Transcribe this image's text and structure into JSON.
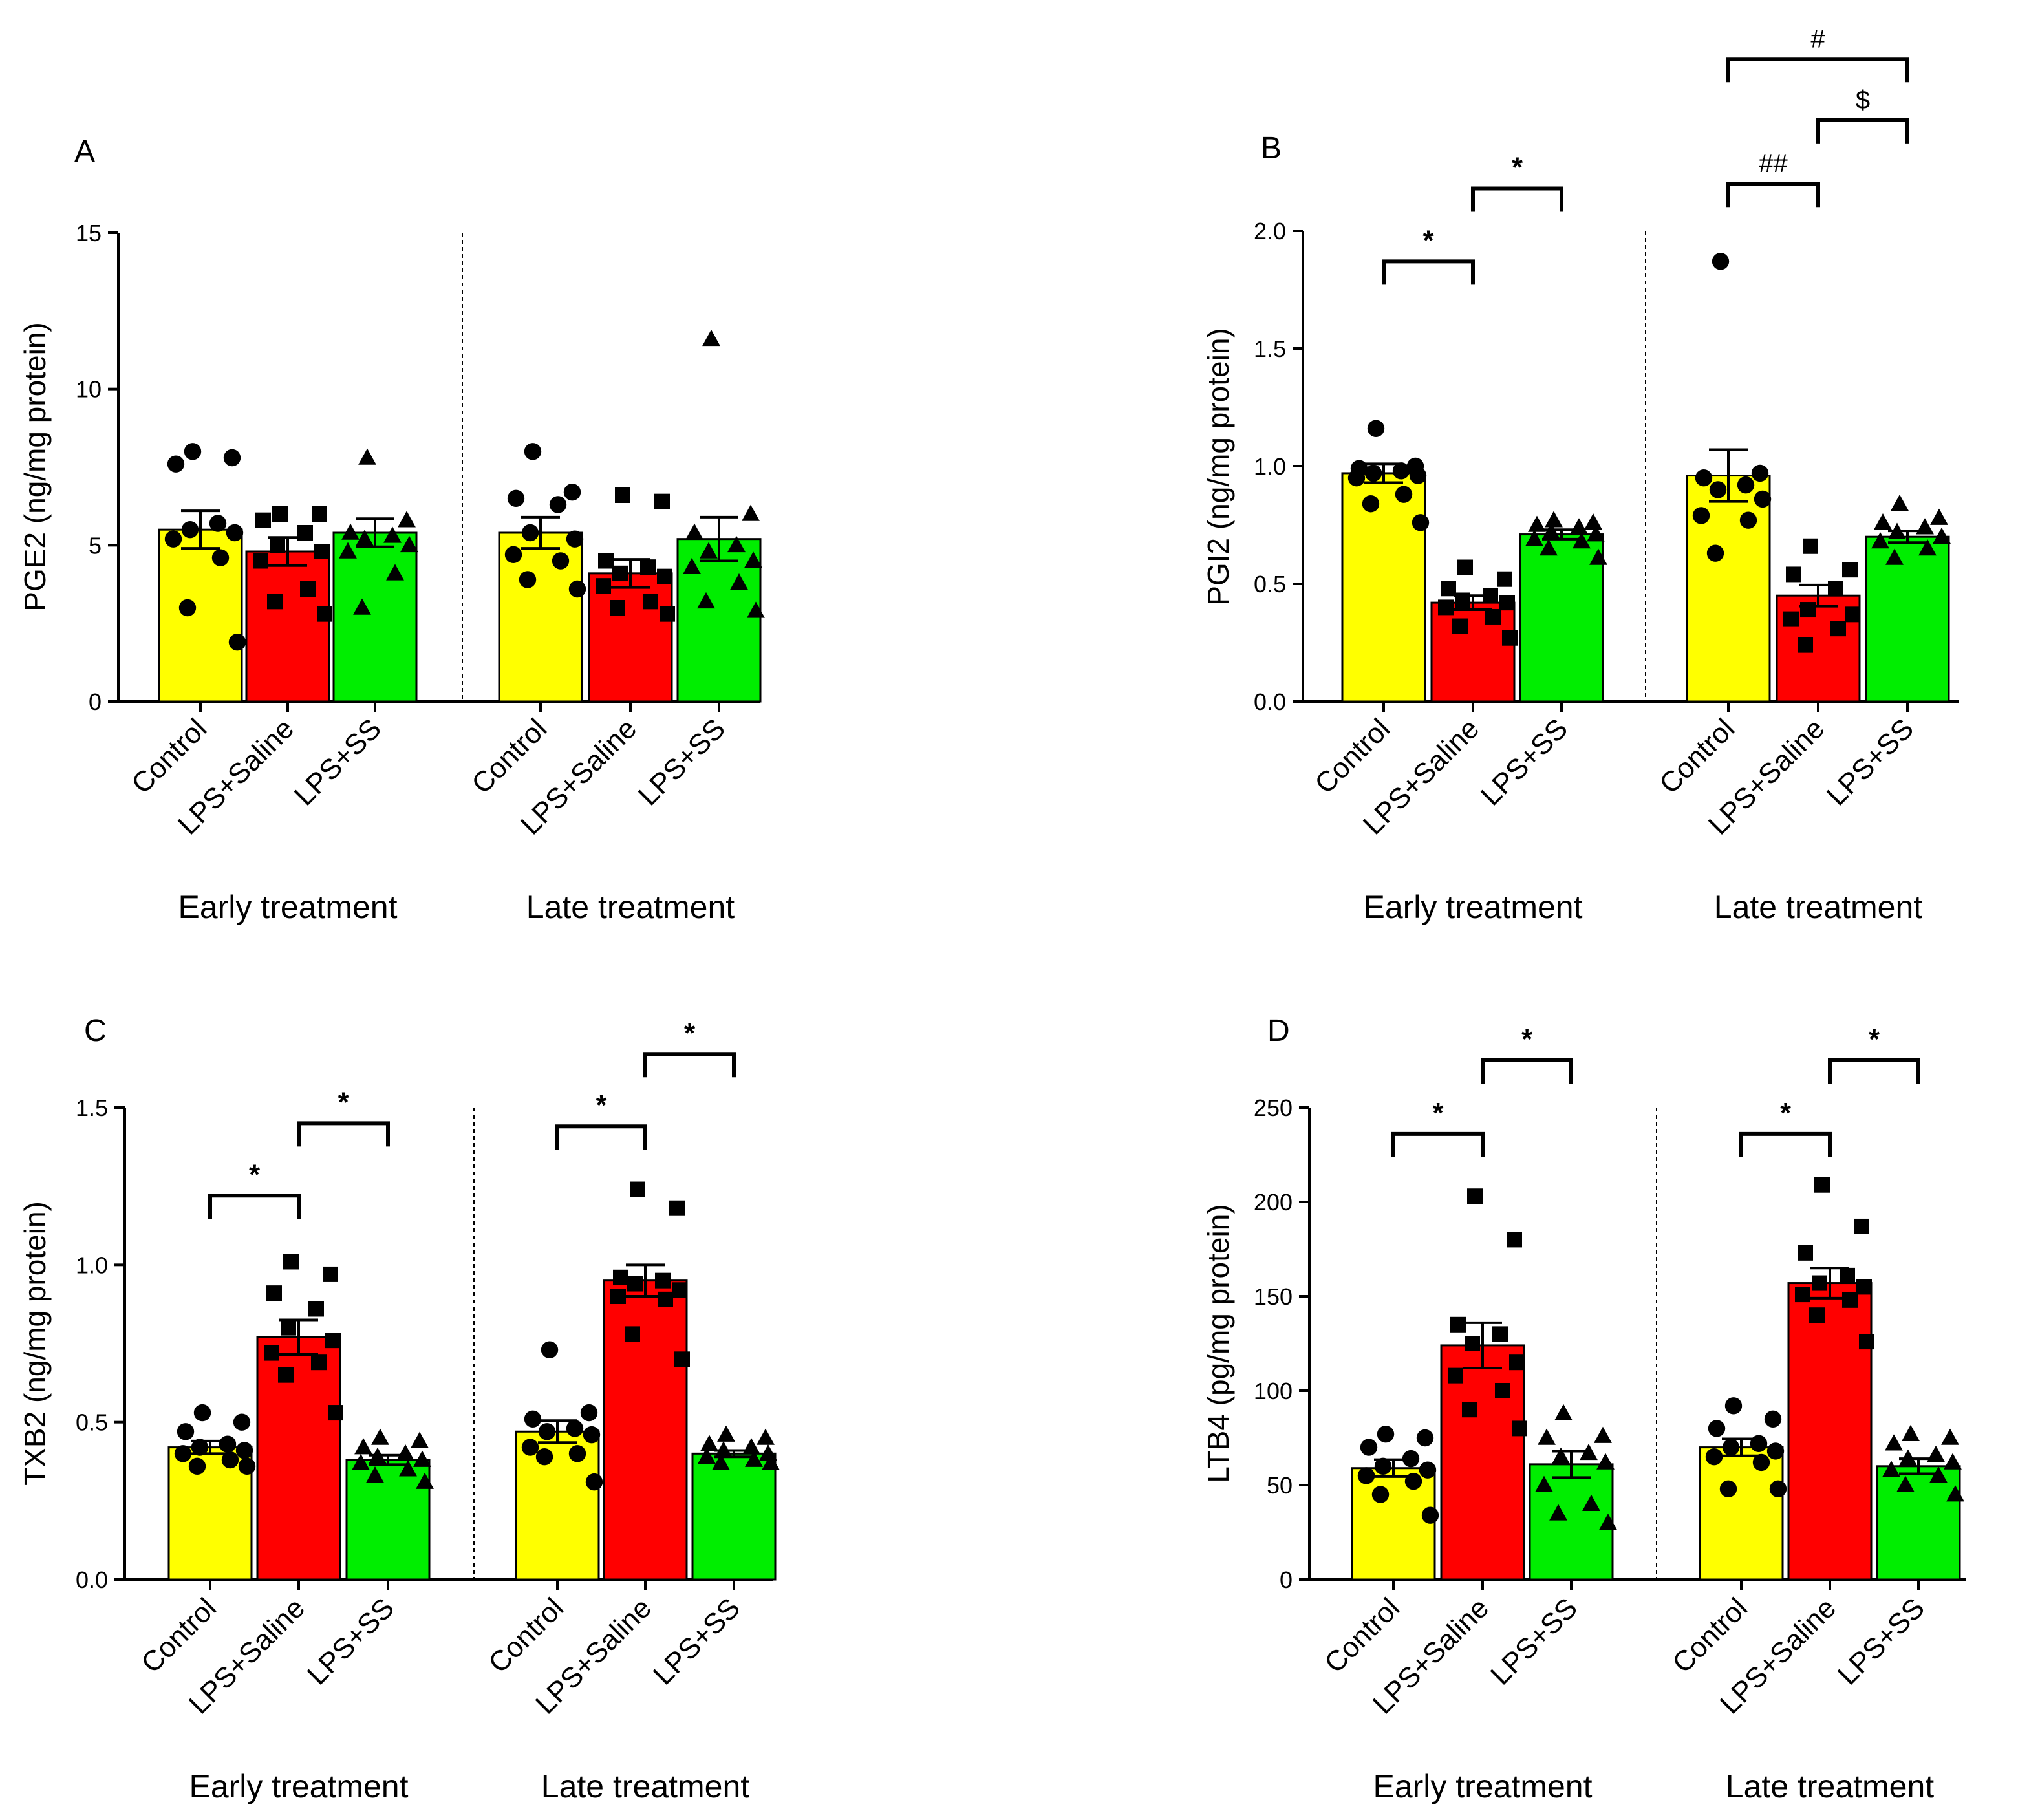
{
  "colors": {
    "control": "#FFFF00",
    "lps_saline": "#FF0000",
    "lps_ss": "#00EE00",
    "ink": "#000000"
  },
  "chart_data": [
    {
      "type": "bar",
      "panel": "A",
      "ylabel": "PGE2 (ng/mg protein)",
      "ylim": [
        0,
        15
      ],
      "yticks": [
        0,
        5,
        10,
        15
      ],
      "ytick_labels": [
        "0",
        "5",
        "10",
        "15"
      ],
      "categories": [
        "Control",
        "LPS+Saline",
        "LPS+SS"
      ],
      "groups": [
        {
          "name": "Early treatment",
          "bars": [
            {
              "category": "Control",
              "mean": 5.5,
              "sem": 0.6,
              "points": [
                8.0,
                7.8,
                7.6,
                5.7,
                5.5,
                5.4,
                5.2,
                4.6,
                3.0,
                1.9
              ]
            },
            {
              "category": "LPS+Saline",
              "mean": 4.8,
              "sem": 0.45,
              "points": [
                6.0,
                6.0,
                5.8,
                5.4,
                5.0,
                4.8,
                4.5,
                3.6,
                3.2,
                2.8
              ]
            },
            {
              "category": "LPS+SS",
              "mean": 5.4,
              "sem": 0.45,
              "points": [
                7.8,
                5.8,
                5.4,
                5.3,
                5.2,
                5.0,
                4.8,
                4.1,
                3.0
              ]
            }
          ]
        },
        {
          "name": "Late treatment",
          "bars": [
            {
              "category": "Control",
              "mean": 5.4,
              "sem": 0.5,
              "points": [
                8.0,
                6.7,
                6.5,
                6.3,
                5.4,
                5.2,
                4.7,
                4.5,
                3.9,
                3.6
              ]
            },
            {
              "category": "LPS+Saline",
              "mean": 4.1,
              "sem": 0.45,
              "points": [
                6.6,
                6.4,
                4.5,
                4.3,
                4.1,
                4.0,
                3.7,
                3.2,
                3.0,
                2.8
              ]
            },
            {
              "category": "LPS+SS",
              "mean": 5.2,
              "sem": 0.7,
              "points": [
                11.6,
                6.0,
                5.4,
                5.0,
                4.8,
                4.5,
                4.3,
                3.8,
                3.2,
                2.9
              ]
            }
          ]
        }
      ],
      "significance": []
    },
    {
      "type": "bar",
      "panel": "B",
      "ylabel": "PGI2 (ng/mg protein)",
      "ylim": [
        0,
        2.0
      ],
      "yticks": [
        0,
        0.5,
        1.0,
        1.5,
        2.0
      ],
      "ytick_labels": [
        "0.0",
        "0.5",
        "1.0",
        "1.5",
        "2.0"
      ],
      "categories": [
        "Control",
        "LPS+Saline",
        "LPS+SS"
      ],
      "groups": [
        {
          "name": "Early treatment",
          "bars": [
            {
              "category": "Control",
              "mean": 0.97,
              "sem": 0.04,
              "points": [
                1.16,
                1.0,
                0.99,
                0.98,
                0.97,
                0.96,
                0.95,
                0.88,
                0.84,
                0.76
              ]
            },
            {
              "category": "LPS+Saline",
              "mean": 0.42,
              "sem": 0.03,
              "points": [
                0.57,
                0.52,
                0.48,
                0.45,
                0.43,
                0.42,
                0.4,
                0.36,
                0.32,
                0.27
              ]
            },
            {
              "category": "LPS+SS",
              "mean": 0.71,
              "sem": 0.02,
              "points": [
                0.77,
                0.76,
                0.75,
                0.74,
                0.72,
                0.71,
                0.69,
                0.68,
                0.65,
                0.61
              ]
            }
          ]
        },
        {
          "name": "Late treatment",
          "bars": [
            {
              "category": "Control",
              "mean": 0.96,
              "sem": 0.11,
              "points": [
                1.87,
                0.97,
                0.95,
                0.92,
                0.9,
                0.86,
                0.79,
                0.77,
                0.63
              ]
            },
            {
              "category": "LPS+Saline",
              "mean": 0.45,
              "sem": 0.045,
              "points": [
                0.66,
                0.56,
                0.54,
                0.48,
                0.39,
                0.37,
                0.35,
                0.31,
                0.24
              ]
            },
            {
              "category": "LPS+SS",
              "mean": 0.7,
              "sem": 0.025,
              "points": [
                0.84,
                0.78,
                0.76,
                0.74,
                0.72,
                0.7,
                0.68,
                0.65,
                0.61
              ]
            }
          ]
        }
      ],
      "significance": [
        {
          "group": 0,
          "from": 0,
          "to": 1,
          "label": "*",
          "y": 1.87
        },
        {
          "group": 0,
          "from": 1,
          "to": 2,
          "label": "*",
          "y": 2.18
        },
        {
          "group": 1,
          "from": 0,
          "to": 1,
          "label": "##",
          "y": 2.2
        },
        {
          "group": 1,
          "from": 1,
          "to": 2,
          "label": "$",
          "y": 2.47
        },
        {
          "group": 1,
          "from": 0,
          "to": 2,
          "label": "#",
          "y": 2.73
        }
      ]
    },
    {
      "type": "bar",
      "panel": "C",
      "ylabel": "TXB2 (ng/mg protein)",
      "ylim": [
        0,
        1.5
      ],
      "yticks": [
        0,
        0.5,
        1.0,
        1.5
      ],
      "ytick_labels": [
        "0.0",
        "0.5",
        "1.0",
        "1.5"
      ],
      "categories": [
        "Control",
        "LPS+Saline",
        "LPS+SS"
      ],
      "groups": [
        {
          "name": "Early treatment",
          "bars": [
            {
              "category": "Control",
              "mean": 0.42,
              "sem": 0.02,
              "points": [
                0.53,
                0.5,
                0.47,
                0.43,
                0.42,
                0.41,
                0.4,
                0.38,
                0.36,
                0.36
              ]
            },
            {
              "category": "LPS+Saline",
              "mean": 0.77,
              "sem": 0.055,
              "points": [
                1.01,
                0.97,
                0.91,
                0.86,
                0.8,
                0.76,
                0.72,
                0.69,
                0.65,
                0.53
              ]
            },
            {
              "category": "LPS+SS",
              "mean": 0.38,
              "sem": 0.015,
              "points": [
                0.45,
                0.44,
                0.42,
                0.4,
                0.39,
                0.38,
                0.37,
                0.35,
                0.33,
                0.31
              ]
            }
          ]
        },
        {
          "name": "Late treatment",
          "bars": [
            {
              "category": "Control",
              "mean": 0.47,
              "sem": 0.035,
              "points": [
                0.73,
                0.53,
                0.51,
                0.48,
                0.47,
                0.46,
                0.42,
                0.4,
                0.39,
                0.31
              ]
            },
            {
              "category": "LPS+Saline",
              "mean": 0.95,
              "sem": 0.05,
              "points": [
                1.24,
                1.18,
                0.96,
                0.95,
                0.94,
                0.92,
                0.9,
                0.89,
                0.78,
                0.7
              ]
            },
            {
              "category": "LPS+SS",
              "mean": 0.4,
              "sem": 0.01,
              "points": [
                0.46,
                0.45,
                0.43,
                0.42,
                0.41,
                0.4,
                0.39,
                0.38,
                0.37,
                0.37
              ]
            }
          ]
        }
      ],
      "significance": [
        {
          "group": 0,
          "from": 0,
          "to": 1,
          "label": "*",
          "y": 1.22
        },
        {
          "group": 0,
          "from": 1,
          "to": 2,
          "label": "*",
          "y": 1.45
        },
        {
          "group": 1,
          "from": 0,
          "to": 1,
          "label": "*",
          "y": 1.44
        },
        {
          "group": 1,
          "from": 1,
          "to": 2,
          "label": "*",
          "y": 1.67
        }
      ]
    },
    {
      "type": "bar",
      "panel": "D",
      "ylabel": "LTB4 (pg/mg protein)",
      "ylim": [
        0,
        250
      ],
      "yticks": [
        0,
        50,
        100,
        150,
        200,
        250
      ],
      "ytick_labels": [
        "0",
        "50",
        "100",
        "150",
        "200",
        "250"
      ],
      "categories": [
        "Control",
        "LPS+Saline",
        "LPS+SS"
      ],
      "groups": [
        {
          "name": "Early treatment",
          "bars": [
            {
              "category": "Control",
              "mean": 59,
              "sem": 4.5,
              "points": [
                77,
                75,
                70,
                64,
                60,
                58,
                55,
                52,
                45,
                34
              ]
            },
            {
              "category": "LPS+Saline",
              "mean": 124,
              "sem": 12,
              "points": [
                203,
                180,
                135,
                130,
                125,
                115,
                108,
                100,
                90,
                80
              ]
            },
            {
              "category": "LPS+SS",
              "mean": 61,
              "sem": 7,
              "points": [
                88,
                76,
                75,
                67,
                65,
                62,
                50,
                40,
                35,
                30
              ]
            }
          ]
        },
        {
          "name": "Late treatment",
          "bars": [
            {
              "category": "Control",
              "mean": 70,
              "sem": 4.5,
              "points": [
                92,
                85,
                80,
                72,
                70,
                68,
                65,
                62,
                48,
                48
              ]
            },
            {
              "category": "LPS+Saline",
              "mean": 157,
              "sem": 8,
              "points": [
                209,
                187,
                173,
                161,
                157,
                155,
                151,
                148,
                140,
                126
              ]
            },
            {
              "category": "LPS+SS",
              "mean": 60,
              "sem": 4,
              "points": [
                77,
                75,
                72,
                66,
                64,
                62,
                58,
                55,
                50,
                45
              ]
            }
          ]
        }
      ],
      "significance": [
        {
          "group": 0,
          "from": 0,
          "to": 1,
          "label": "*",
          "y": 236
        },
        {
          "group": 0,
          "from": 1,
          "to": 2,
          "label": "*",
          "y": 275
        },
        {
          "group": 1,
          "from": 0,
          "to": 1,
          "label": "*",
          "y": 236
        },
        {
          "group": 1,
          "from": 1,
          "to": 2,
          "label": "*",
          "y": 275
        }
      ]
    }
  ]
}
